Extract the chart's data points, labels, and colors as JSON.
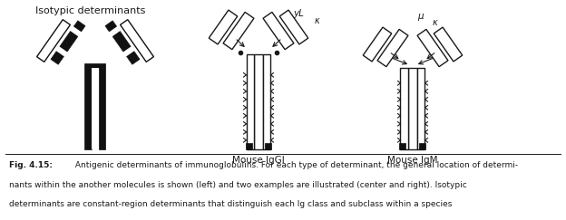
{
  "title": "Isotypic determinants",
  "label_center": "Mouse IgGl",
  "label_right": "Mouse IgM",
  "label_yL": "yL",
  "label_kappa_center": "κ",
  "label_mu": "μ",
  "label_kappa_right": "κ",
  "caption_bold": "Fig. 4.15:",
  "caption_rest": " Antigenic determinants of immunoglobulins. For each type of determinant, the general location of determi-\nnants within the another molecules is shown (left) and two examples are illustrated (center and right). Isotypic\ndeterminants are constant-region determinants that distinguish each Ig class and subclass within a species",
  "bg_color": "#ffffff",
  "line_color": "#1a1a1a",
  "fill_dark": "#111111",
  "fig_width": 6.24,
  "fig_height": 2.43,
  "dpi": 100
}
